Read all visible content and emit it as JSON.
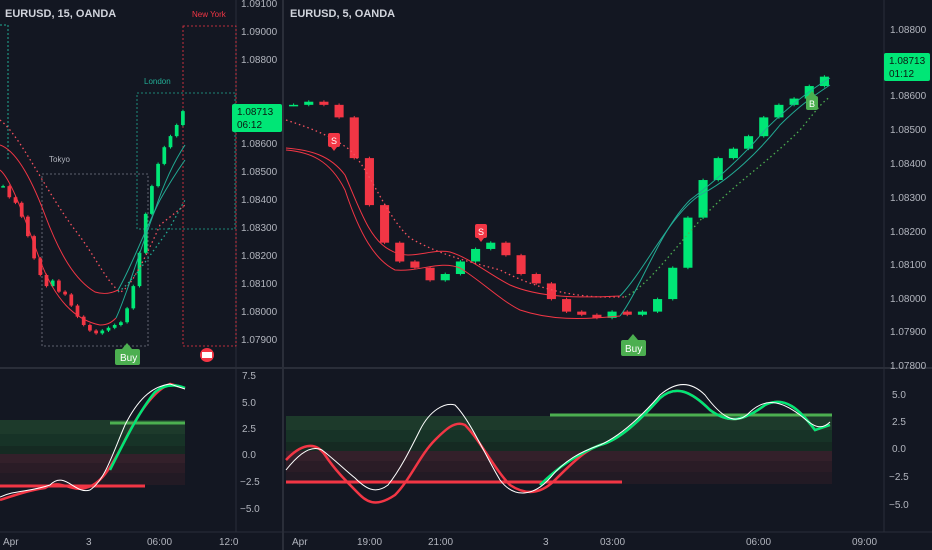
{
  "left": {
    "symbol": "EURUSD, 15, OANDA",
    "price_ticks": [
      "1.09100",
      "1.09000",
      "1.08800",
      "1.08600",
      "1.08500",
      "1.08400",
      "1.08300",
      "1.08200",
      "1.08100",
      "1.08000",
      "1.07900"
    ],
    "price_badge": "1.08713",
    "countdown": "06:12",
    "osc_ticks": [
      "7.5",
      "5.0",
      "2.5",
      "0.0",
      "−2.5",
      "−5.0"
    ],
    "time_ticks": [
      "Apr",
      "3",
      "06:00",
      "12:0"
    ],
    "sessions": [
      "Tokyo",
      "London",
      "New York"
    ],
    "buy_label": "Buy",
    "colors": {
      "bull": "#22ab94",
      "bull_bright": "#00e676",
      "bear": "#f23645",
      "badge": "#00e676",
      "box": "#787b86"
    }
  },
  "right": {
    "symbol": "EURUSD, 5, OANDA",
    "price_ticks": [
      "1.08800",
      "1.08600",
      "1.08500",
      "1.08400",
      "1.08300",
      "1.08200",
      "1.08100",
      "1.08000",
      "1.07900",
      "1.07800"
    ],
    "price_badge": "1.08713",
    "countdown": "01:12",
    "osc_ticks": [
      "5.0",
      "2.5",
      "0.0",
      "−2.5",
      "−5.0"
    ],
    "time_ticks": [
      "Apr",
      "19:00",
      "21:00",
      "3",
      "03:00",
      "06:00",
      "09:00"
    ],
    "sell_label": "S",
    "buy_label": "Buy",
    "b_label": "B"
  },
  "chart_data": [
    {
      "type": "candlestick",
      "title": "EURUSD, 15, OANDA",
      "ylim": [
        1.0785,
        1.0911
      ],
      "close_path": [
        1.0844,
        1.084,
        1.0838,
        1.0833,
        1.0826,
        1.0818,
        1.0812,
        1.0808,
        1.081,
        1.0806,
        1.0805,
        1.0801,
        1.0797,
        1.0794,
        1.0792,
        1.0791,
        1.0792,
        1.0793,
        1.0794,
        1.0795,
        1.08,
        1.0808,
        1.082,
        1.0834,
        1.0844,
        1.0852,
        1.0858,
        1.0862,
        1.0866,
        1.0871
      ],
      "last": 1.08713,
      "signals": [
        "Buy"
      ],
      "sessions": [
        "Tokyo",
        "London",
        "New York"
      ]
    },
    {
      "type": "candlestick",
      "title": "EURUSD, 5, OANDA",
      "ylim": [
        1.0778,
        1.0891
      ],
      "close_path": [
        1.0862,
        1.0863,
        1.0862,
        1.0858,
        1.0845,
        1.083,
        1.0818,
        1.0812,
        1.081,
        1.0806,
        1.0808,
        1.0812,
        1.0816,
        1.0818,
        1.0814,
        1.0808,
        1.0805,
        1.08,
        1.0796,
        1.0795,
        1.0794,
        1.0796,
        1.0795,
        1.0796,
        1.08,
        1.081,
        1.0826,
        1.0838,
        1.0845,
        1.0848,
        1.0852,
        1.0858,
        1.0862,
        1.0864,
        1.0868,
        1.0871
      ],
      "last": 1.08713,
      "signals": [
        "S",
        "S",
        "Buy",
        "B"
      ]
    }
  ]
}
